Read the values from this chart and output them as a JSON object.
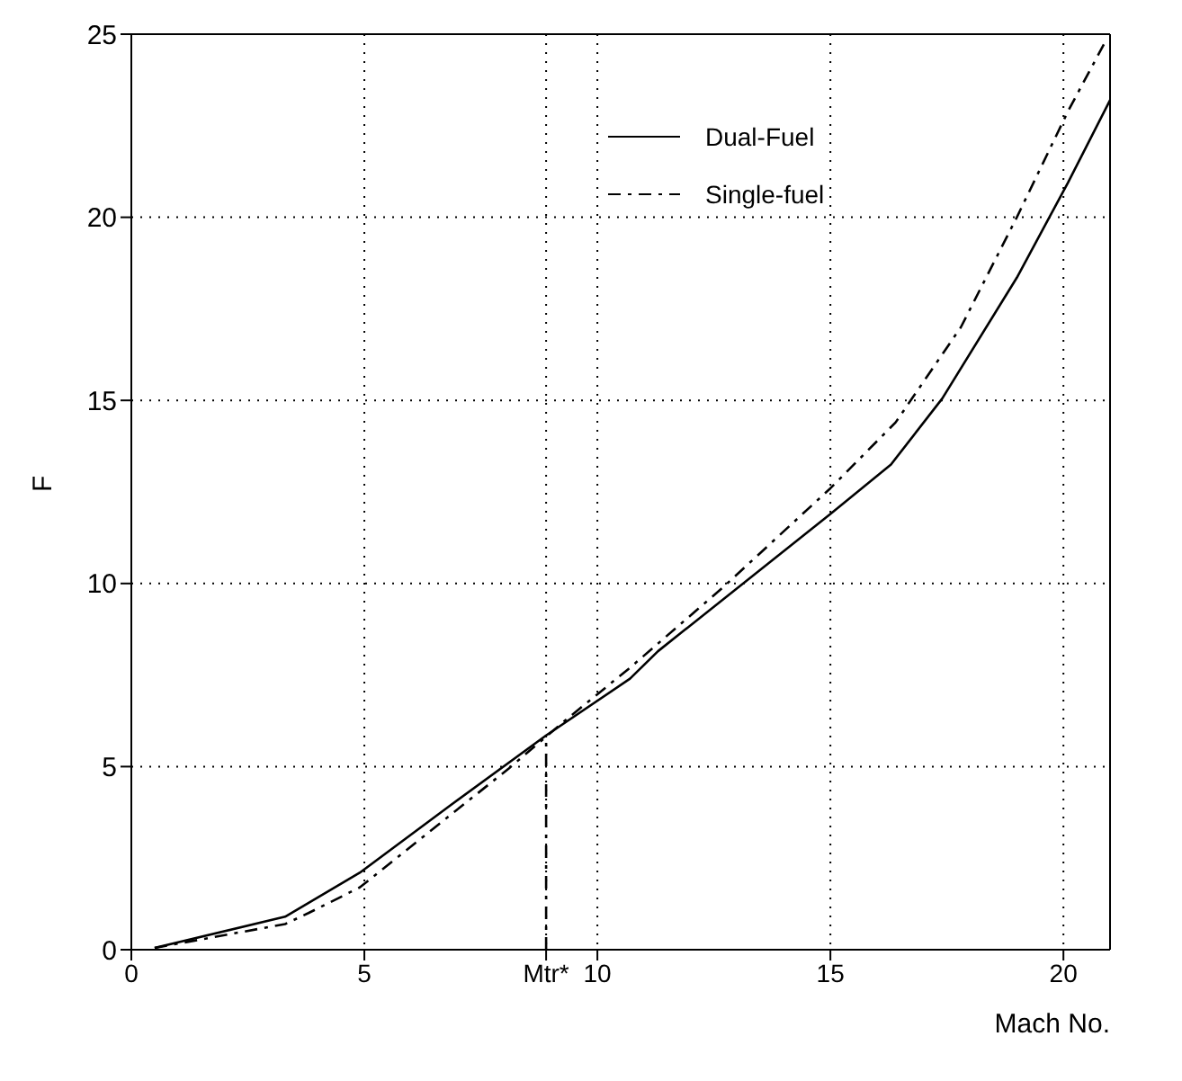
{
  "chart_data": {
    "type": "line",
    "xlabel": "Mach No.",
    "ylabel": "F",
    "xlim": [
      0,
      21
    ],
    "xticks": [
      0,
      5,
      {
        "value": 8.9,
        "label": "Mtr*"
      },
      10,
      15,
      20
    ],
    "ylim": [
      0,
      25
    ],
    "yticks": [
      0,
      5,
      10,
      15,
      20,
      25
    ],
    "grid": true,
    "legend": "top",
    "marker": "none",
    "series": [
      {
        "name": "Dual-Fuel",
        "color": "#000000",
        "line_style": "solid",
        "x": [
          0.5,
          3.3,
          4.9,
          6.8,
          8.9,
          10.7,
          11.3,
          15,
          16.3,
          17.4,
          19,
          20.1,
          21
        ],
        "values": [
          0.05,
          0.9,
          2.1,
          3.9,
          5.85,
          7.4,
          8.15,
          11.9,
          13.25,
          15.05,
          18.35,
          20.95,
          23.2
        ]
      },
      {
        "name": "Single-fuel",
        "color": "#000000",
        "line_style": "dashed",
        "x": [
          0.5,
          3.3,
          3.8,
          4.9,
          8.1,
          9.3,
          10.7,
          12.7,
          15,
          16.4,
          17.8,
          19,
          20.1,
          20.9
        ],
        "values": [
          0.05,
          0.7,
          1,
          1.7,
          4.95,
          6.25,
          7.7,
          9.9,
          12.6,
          14.4,
          17,
          20,
          22.9,
          24.8
        ]
      },
      {
        "color": "#000000",
        "line_style": "dashed",
        "x": [
          8.9,
          8.9
        ],
        "values": [
          0,
          5.85
        ]
      }
    ]
  }
}
